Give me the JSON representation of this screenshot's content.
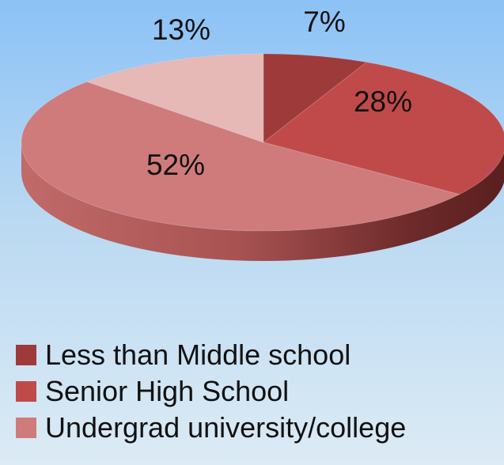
{
  "chart_data": {
    "type": "pie",
    "variant": "3d",
    "title": "",
    "categories": [
      "Less than Middle school",
      "Senior High School",
      "Undergrad university/college",
      ""
    ],
    "values": [
      7,
      28,
      52,
      13
    ],
    "labels": [
      "7%",
      "28%",
      "52%",
      "13%"
    ],
    "colors": [
      "#9e3a3a",
      "#c04a4a",
      "#cf7b7b",
      "#e6b8b6"
    ],
    "legend": {
      "placement": "bottom",
      "entries": [
        {
          "label": "Less than Middle school",
          "color": "#9e3a3a"
        },
        {
          "label": "Senior High School",
          "color": "#c04a4a"
        },
        {
          "label": "Undergrad university/college",
          "color": "#cf7b7b"
        }
      ]
    }
  }
}
